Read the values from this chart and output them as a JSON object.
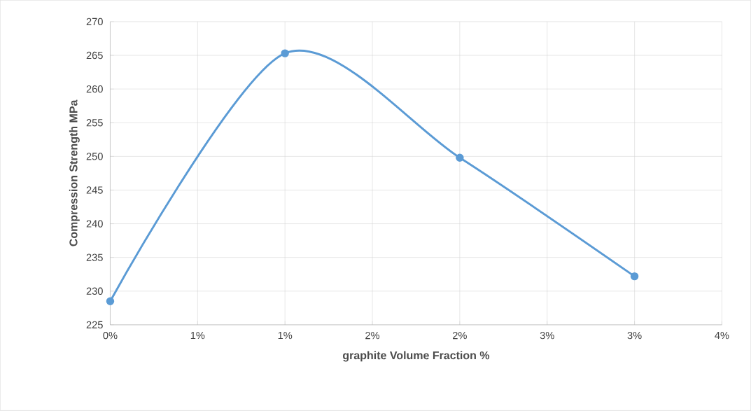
{
  "chart_data": {
    "type": "line",
    "xlabel": "graphite Volume Fraction %",
    "ylabel": "Compression Strength   MPa",
    "x": [
      0,
      1,
      2,
      3
    ],
    "series": [
      {
        "color": "#5b9bd5",
        "values": [
          228.5,
          265.3,
          249.8,
          232.2
        ]
      }
    ],
    "xlim": [
      0,
      3.5
    ],
    "ylim": [
      225,
      270
    ],
    "xticks": [
      {
        "value": 0,
        "label": "0%"
      },
      {
        "value": 0.5,
        "label": "1%"
      },
      {
        "value": 1,
        "label": "1%"
      },
      {
        "value": 1.5,
        "label": "2%"
      },
      {
        "value": 2,
        "label": "2%"
      },
      {
        "value": 2.5,
        "label": "3%"
      },
      {
        "value": 3,
        "label": "3%"
      },
      {
        "value": 3.5,
        "label": "4%"
      }
    ],
    "yticks": [
      225,
      230,
      235,
      240,
      245,
      250,
      255,
      260,
      265,
      270
    ],
    "grid": true,
    "marker": "circle",
    "line_style": "solid"
  }
}
